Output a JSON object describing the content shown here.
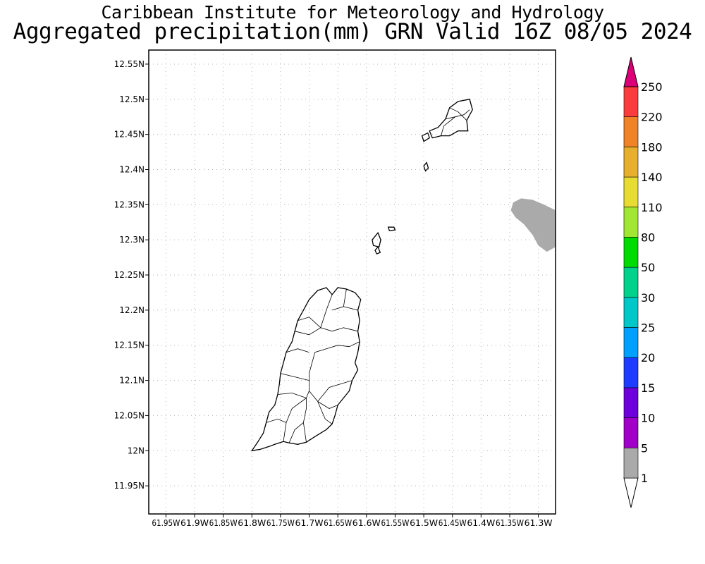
{
  "title": {
    "line1": "Caribbean Institute for Meteorology and Hydrology",
    "line2": "Aggregated precipitation(mm) GRN Valid 16Z 08/05 2024"
  },
  "map": {
    "lon_range": [
      -61.98,
      -61.27
    ],
    "lat_range": [
      11.91,
      12.57
    ],
    "lat_ticks": [
      {
        "value": 12.55,
        "label": "12.55N"
      },
      {
        "value": 12.5,
        "label": "12.5N"
      },
      {
        "value": 12.45,
        "label": "12.45N"
      },
      {
        "value": 12.4,
        "label": "12.4N"
      },
      {
        "value": 12.35,
        "label": "12.35N"
      },
      {
        "value": 12.3,
        "label": "12.3N"
      },
      {
        "value": 12.25,
        "label": "12.25N"
      },
      {
        "value": 12.2,
        "label": "12.2N"
      },
      {
        "value": 12.15,
        "label": "12.15N"
      },
      {
        "value": 12.1,
        "label": "12.1N"
      },
      {
        "value": 12.05,
        "label": "12.05N"
      },
      {
        "value": 12.0,
        "label": "12N"
      },
      {
        "value": 11.95,
        "label": "11.95N"
      }
    ],
    "lon_ticks": [
      {
        "value": -61.95,
        "label": "61.95W"
      },
      {
        "value": -61.9,
        "label": "61.9W"
      },
      {
        "value": -61.85,
        "label": "61.85W"
      },
      {
        "value": -61.8,
        "label": "61.8W"
      },
      {
        "value": -61.75,
        "label": "61.75W"
      },
      {
        "value": -61.7,
        "label": "61.7W"
      },
      {
        "value": -61.65,
        "label": "61.65W"
      },
      {
        "value": -61.6,
        "label": "61.6W"
      },
      {
        "value": -61.55,
        "label": "61.55W"
      },
      {
        "value": -61.5,
        "label": "61.5W"
      },
      {
        "value": -61.45,
        "label": "61.45W"
      },
      {
        "value": -61.4,
        "label": "61.4W"
      },
      {
        "value": -61.35,
        "label": "61.35W"
      },
      {
        "value": -61.3,
        "label": "61.3W"
      }
    ],
    "grid": true,
    "precip_area": {
      "level": "1-5",
      "color": "#aaaaaa",
      "outline": [
        [
          -61.27,
          12.29
        ],
        [
          -61.285,
          12.283
        ],
        [
          -61.3,
          12.292
        ],
        [
          -61.31,
          12.307
        ],
        [
          -61.325,
          12.322
        ],
        [
          -61.34,
          12.332
        ],
        [
          -61.348,
          12.342
        ],
        [
          -61.344,
          12.353
        ],
        [
          -61.33,
          12.359
        ],
        [
          -61.31,
          12.357
        ],
        [
          -61.29,
          12.35
        ],
        [
          -61.27,
          12.342
        ]
      ]
    },
    "grenada_outline": [
      [
        -61.8,
        12.0
      ],
      [
        -61.785,
        12.002
      ],
      [
        -61.77,
        12.006
      ],
      [
        -61.76,
        12.009
      ],
      [
        -61.745,
        12.013
      ],
      [
        -61.735,
        12.011
      ],
      [
        -61.72,
        12.009
      ],
      [
        -61.705,
        12.012
      ],
      [
        -61.69,
        12.02
      ],
      [
        -61.68,
        12.025
      ],
      [
        -61.67,
        12.03
      ],
      [
        -61.66,
        12.038
      ],
      [
        -61.655,
        12.05
      ],
      [
        -61.65,
        12.065
      ],
      [
        -61.64,
        12.075
      ],
      [
        -61.63,
        12.085
      ],
      [
        -61.625,
        12.1
      ],
      [
        -61.615,
        12.115
      ],
      [
        -61.62,
        12.125
      ],
      [
        -61.615,
        12.14
      ],
      [
        -61.612,
        12.155
      ],
      [
        -61.615,
        12.17
      ],
      [
        -61.612,
        12.185
      ],
      [
        -61.615,
        12.2
      ],
      [
        -61.61,
        12.215
      ],
      [
        -61.62,
        12.225
      ],
      [
        -61.635,
        12.23
      ],
      [
        -61.65,
        12.232
      ],
      [
        -61.66,
        12.222
      ],
      [
        -61.67,
        12.232
      ],
      [
        -61.685,
        12.228
      ],
      [
        -61.7,
        12.215
      ],
      [
        -61.71,
        12.2
      ],
      [
        -61.72,
        12.185
      ],
      [
        -61.725,
        12.17
      ],
      [
        -61.73,
        12.155
      ],
      [
        -61.74,
        12.14
      ],
      [
        -61.745,
        12.125
      ],
      [
        -61.75,
        12.11
      ],
      [
        -61.752,
        12.095
      ],
      [
        -61.755,
        12.08
      ],
      [
        -61.76,
        12.065
      ],
      [
        -61.77,
        12.055
      ],
      [
        -61.775,
        12.04
      ],
      [
        -61.78,
        12.025
      ],
      [
        -61.79,
        12.012
      ],
      [
        -61.8,
        12.0
      ]
    ],
    "grenada_boundaries": [
      [
        [
          -61.66,
          12.222
        ],
        [
          -61.67,
          12.2
        ],
        [
          -61.68,
          12.175
        ],
        [
          -61.7,
          12.165
        ],
        [
          -61.725,
          12.17
        ]
      ],
      [
        [
          -61.615,
          12.17
        ],
        [
          -61.64,
          12.175
        ],
        [
          -61.66,
          12.17
        ],
        [
          -61.68,
          12.175
        ]
      ],
      [
        [
          -61.612,
          12.155
        ],
        [
          -61.63,
          12.148
        ],
        [
          -61.65,
          12.15
        ],
        [
          -61.67,
          12.145
        ],
        [
          -61.69,
          12.14
        ],
        [
          -61.7,
          12.11
        ],
        [
          -61.7,
          12.085
        ],
        [
          -61.685,
          12.07
        ],
        [
          -61.672,
          12.045
        ],
        [
          -61.66,
          12.038
        ]
      ],
      [
        [
          -61.74,
          12.14
        ],
        [
          -61.72,
          12.145
        ],
        [
          -61.7,
          12.14
        ]
      ],
      [
        [
          -61.75,
          12.11
        ],
        [
          -61.725,
          12.105
        ],
        [
          -61.7,
          12.1
        ]
      ],
      [
        [
          -61.755,
          12.08
        ],
        [
          -61.73,
          12.082
        ],
        [
          -61.705,
          12.075
        ],
        [
          -61.7,
          12.085
        ]
      ],
      [
        [
          -61.625,
          12.1
        ],
        [
          -61.645,
          12.095
        ],
        [
          -61.665,
          12.09
        ],
        [
          -61.685,
          12.07
        ]
      ],
      [
        [
          -61.65,
          12.065
        ],
        [
          -61.665,
          12.06
        ],
        [
          -61.685,
          12.07
        ]
      ],
      [
        [
          -61.705,
          12.012
        ],
        [
          -61.71,
          12.04
        ],
        [
          -61.705,
          12.06
        ],
        [
          -61.705,
          12.075
        ]
      ],
      [
        [
          -61.745,
          12.013
        ],
        [
          -61.74,
          12.04
        ],
        [
          -61.73,
          12.06
        ],
        [
          -61.705,
          12.075
        ]
      ],
      [
        [
          -61.635,
          12.23
        ],
        [
          -61.64,
          12.205
        ],
        [
          -61.66,
          12.2
        ]
      ],
      [
        [
          -61.775,
          12.04
        ],
        [
          -61.755,
          12.045
        ],
        [
          -61.74,
          12.04
        ]
      ],
      [
        [
          -61.615,
          12.2
        ],
        [
          -61.64,
          12.205
        ]
      ],
      [
        [
          -61.72,
          12.185
        ],
        [
          -61.7,
          12.19
        ],
        [
          -61.68,
          12.175
        ]
      ],
      [
        [
          -61.735,
          12.011
        ],
        [
          -61.725,
          12.03
        ],
        [
          -61.71,
          12.04
        ]
      ]
    ],
    "islands": [
      [
        [
          -61.49,
          12.455
        ],
        [
          -61.475,
          12.46
        ],
        [
          -61.462,
          12.472
        ],
        [
          -61.455,
          12.488
        ],
        [
          -61.44,
          12.497
        ],
        [
          -61.42,
          12.5
        ],
        [
          -61.415,
          12.485
        ],
        [
          -61.425,
          12.47
        ],
        [
          -61.423,
          12.455
        ],
        [
          -61.44,
          12.455
        ],
        [
          -61.455,
          12.448
        ],
        [
          -61.47,
          12.448
        ],
        [
          -61.485,
          12.445
        ]
      ],
      [
        [
          -61.5,
          12.44
        ],
        [
          -61.49,
          12.445
        ],
        [
          -61.493,
          12.452
        ],
        [
          -61.503,
          12.448
        ]
      ],
      [
        [
          -61.5,
          12.405
        ],
        [
          -61.495,
          12.41
        ],
        [
          -61.492,
          12.402
        ],
        [
          -61.497,
          12.398
        ]
      ],
      [
        [
          -61.59,
          12.3
        ],
        [
          -61.58,
          12.31
        ],
        [
          -61.575,
          12.3
        ],
        [
          -61.578,
          12.29
        ],
        [
          -61.588,
          12.292
        ]
      ],
      [
        [
          -61.585,
          12.285
        ],
        [
          -61.58,
          12.29
        ],
        [
          -61.576,
          12.282
        ],
        [
          -61.582,
          12.28
        ]
      ],
      [
        [
          -61.562,
          12.318
        ],
        [
          -61.552,
          12.318
        ],
        [
          -61.55,
          12.314
        ],
        [
          -61.56,
          12.313
        ]
      ]
    ],
    "island_boundaries": [
      [
        [
          -61.462,
          12.472
        ],
        [
          -61.445,
          12.475
        ],
        [
          -61.43,
          12.478
        ],
        [
          -61.42,
          12.485
        ]
      ],
      [
        [
          -61.455,
          12.488
        ],
        [
          -61.44,
          12.482
        ],
        [
          -61.425,
          12.47
        ]
      ],
      [
        [
          -61.47,
          12.448
        ],
        [
          -61.465,
          12.462
        ],
        [
          -61.445,
          12.475
        ]
      ]
    ]
  },
  "colorbar": {
    "labels": [
      "1",
      "5",
      "10",
      "15",
      "20",
      "25",
      "30",
      "50",
      "80",
      "110",
      "140",
      "180",
      "220",
      "250"
    ],
    "colors": [
      "#ffffff",
      "#aaaaaa",
      "#a000c8",
      "#6e00dc",
      "#1e3cff",
      "#00a0ff",
      "#00c8c8",
      "#00d28c",
      "#00dc00",
      "#a0e632",
      "#e6dc32",
      "#e6af2d",
      "#f08228",
      "#fa3c3c",
      "#dc0078"
    ]
  }
}
